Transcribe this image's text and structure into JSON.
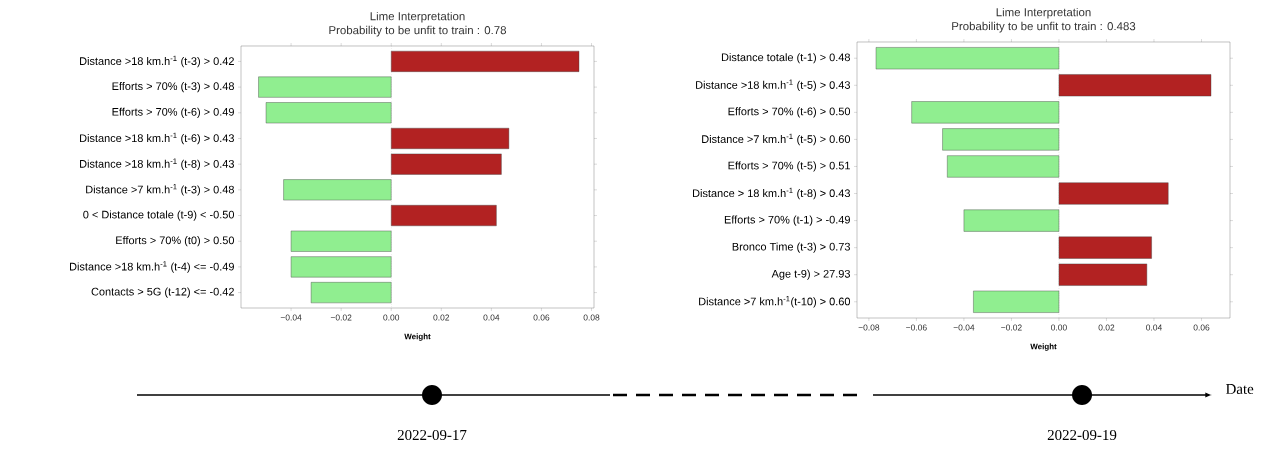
{
  "chart_data": [
    {
      "type": "bar",
      "orientation": "horizontal",
      "title": "Lime Interpretation",
      "subtitle": "Probability to be unfit to train : 0.78",
      "xlabel": "Weight",
      "categories": [
        "Distance >18 km.h$^{-1}$ (t-3) > 0.42",
        "Efforts > 70% (t-3) > 0.48",
        "Efforts > 70% (t-6) > 0.49",
        "Distance >18 km.h$^{-1}$ (t-6) > 0.43",
        "Distance >18 km.h$^{-1}$ (t-8) > 0.43",
        "Distance >7 km.h$^{-1}$ (t-3) > 0.48",
        "0 < Distance totale (t-9) < -0.50",
        "Efforts > 70% (t0) > 0.50",
        "Distance >18 km.h$^{-1}$ (t-4) <= -0.49",
        "Contacts > 5G (t-12) <= -0.42"
      ],
      "values": [
        0.075,
        -0.053,
        -0.05,
        0.047,
        0.044,
        -0.043,
        0.042,
        -0.04,
        -0.04,
        -0.032
      ],
      "colors": [
        "#b22222",
        "#90ee90",
        "#90ee90",
        "#b22222",
        "#b22222",
        "#90ee90",
        "#b22222",
        "#90ee90",
        "#90ee90",
        "#90ee90"
      ],
      "xlim": [
        -0.06,
        0.081
      ],
      "xticks": [
        {
          "value": -0.04,
          "label": "−0.04"
        },
        {
          "value": -0.02,
          "label": "−0.02"
        },
        {
          "value": 0,
          "label": "0.00"
        },
        {
          "value": 0.02,
          "label": "0.02"
        },
        {
          "value": 0.04,
          "label": "0.04"
        },
        {
          "value": 0.06,
          "label": "0.06"
        },
        {
          "value": 0.08,
          "label": "0.08"
        }
      ],
      "ref_lines": [
        {
          "axis": "x",
          "value": 0,
          "color": "#808080",
          "line_style": "dotted"
        }
      ],
      "annotations": [
        "2022-09-17"
      ]
    },
    {
      "type": "bar",
      "orientation": "horizontal",
      "title": "Lime Interpretation",
      "subtitle": "Probability to be unfit to train : 0.483",
      "xlabel": "Weight",
      "categories": [
        "Distance totale (t-1) > 0.48",
        "Distance >18 km.h$^{-1}$ (t-5) > 0.43",
        "Efforts > 70% (t-6) > 0.50",
        "Distance >7 km.h$^{-1}$ (t-5) > 0.60",
        "Efforts > 70% (t-5) > 0.51",
        "Distance > 18 km.h$^{-1}$ (t-8) > 0.43",
        "Efforts > 70% (t-1) > -0.49",
        "Bronco Time (t-3) > 0.73",
        "Age t-9) > 27.93",
        "Distance >7 km.h$^{-1}$(t-10) > 0.60"
      ],
      "values": [
        -0.077,
        0.064,
        -0.062,
        -0.049,
        -0.047,
        0.046,
        -0.04,
        0.039,
        0.037,
        -0.036
      ],
      "colors": [
        "#90ee90",
        "#b22222",
        "#90ee90",
        "#90ee90",
        "#90ee90",
        "#b22222",
        "#90ee90",
        "#b22222",
        "#b22222",
        "#90ee90"
      ],
      "xlim": [
        -0.085,
        0.072
      ],
      "xticks": [
        {
          "value": -0.08,
          "label": "−0.08"
        },
        {
          "value": -0.06,
          "label": "−0.06"
        },
        {
          "value": -0.04,
          "label": "−0.04"
        },
        {
          "value": -0.02,
          "label": "−0.02"
        },
        {
          "value": 0,
          "label": "0.00"
        },
        {
          "value": 0.02,
          "label": "0.02"
        },
        {
          "value": 0.04,
          "label": "0.04"
        },
        {
          "value": 0.06,
          "label": "0.06"
        }
      ],
      "ref_lines": [
        {
          "axis": "x",
          "value": 0,
          "color": "#808080",
          "line_style": "dotted"
        }
      ],
      "annotations": [
        "2022-09-19",
        "Date"
      ]
    }
  ]
}
